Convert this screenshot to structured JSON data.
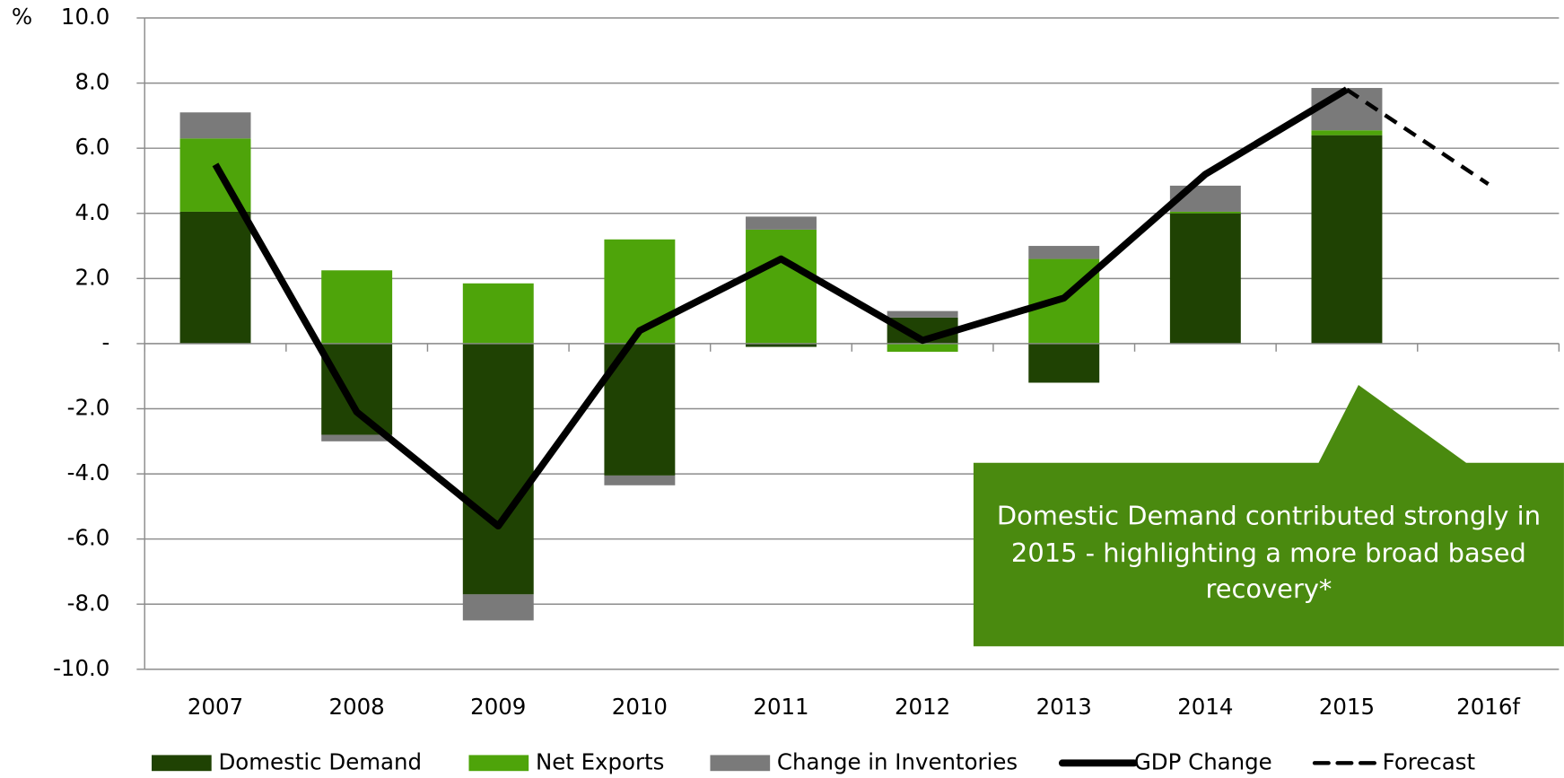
{
  "chart_data": {
    "type": "bar",
    "y_label": "%",
    "categories": [
      "2007",
      "2008",
      "2009",
      "2010",
      "2011",
      "2012",
      "2013",
      "2014",
      "2015",
      "2016f"
    ],
    "ylim": [
      -10,
      10
    ],
    "yticks": [
      {
        "value": -10,
        "label": "-10.0"
      },
      {
        "value": -8,
        "label": "-8.0"
      },
      {
        "value": -6,
        "label": "-6.0"
      },
      {
        "value": -4,
        "label": "-4.0"
      },
      {
        "value": -2,
        "label": "-2.0"
      },
      {
        "value": 0,
        "label": "-"
      },
      {
        "value": 2,
        "label": "2.0"
      },
      {
        "value": 4,
        "label": "4.0"
      },
      {
        "value": 6,
        "label": "6.0"
      },
      {
        "value": 8,
        "label": "8.0"
      },
      {
        "value": 10,
        "label": "10.0"
      }
    ],
    "grid": true,
    "stacked": true,
    "series": [
      {
        "name": "Domestic Demand",
        "type": "bar",
        "color": "#1f4203",
        "values": [
          4.05,
          -2.8,
          -7.7,
          -4.05,
          -0.1,
          0.8,
          -1.2,
          4.0,
          6.4,
          null
        ]
      },
      {
        "name": "Net Exports",
        "type": "bar",
        "color": "#4ea40a",
        "values": [
          2.25,
          2.25,
          1.85,
          3.2,
          3.5,
          -0.25,
          2.6,
          0.05,
          0.15,
          null
        ]
      },
      {
        "name": "Change in Inventories",
        "type": "bar",
        "color": "#7a7a7a",
        "values": [
          0.8,
          -0.2,
          -0.8,
          -0.3,
          0.4,
          0.2,
          0.4,
          0.8,
          1.3,
          null
        ]
      },
      {
        "name": "GDP Change",
        "type": "line",
        "color": "#000000",
        "dash": false,
        "values": [
          5.5,
          -2.1,
          -5.6,
          0.4,
          2.6,
          0.1,
          1.4,
          5.2,
          7.8,
          null
        ]
      },
      {
        "name": "Forecast",
        "type": "line",
        "color": "#000000",
        "dash": true,
        "values": [
          null,
          null,
          null,
          null,
          null,
          null,
          null,
          null,
          7.8,
          4.9
        ]
      }
    ],
    "annotation": {
      "text": "Domestic Demand contributed strongly in 2015 - highlighting a more broad based recovery*",
      "color": "#4a8a0f"
    }
  }
}
